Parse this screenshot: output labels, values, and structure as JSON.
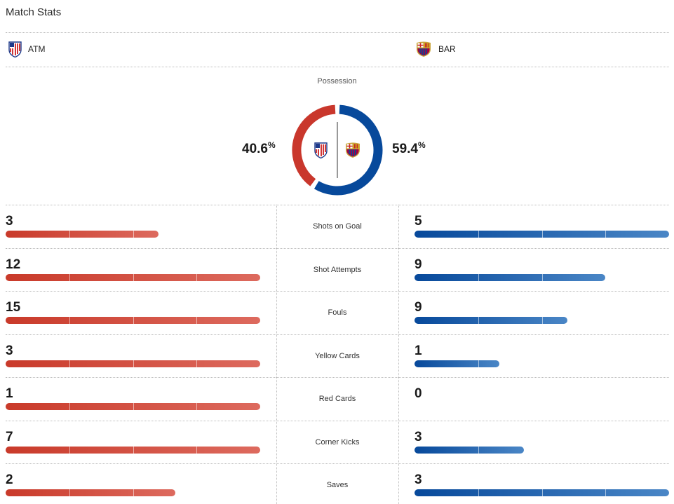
{
  "title": "Match Stats",
  "teams": {
    "home": {
      "abbr": "ATM",
      "logo": "atletico-crest-icon",
      "color": "#c9372c"
    },
    "away": {
      "abbr": "BAR",
      "logo": "barcelona-crest-icon",
      "color": "#07499b"
    }
  },
  "possession": {
    "label": "Possession",
    "home": {
      "value": "40.6",
      "unit": "%"
    },
    "away": {
      "value": "59.4",
      "unit": "%"
    }
  },
  "stats": [
    {
      "label": "Shots on Goal",
      "home": "3",
      "away": "5"
    },
    {
      "label": "Shot Attempts",
      "home": "12",
      "away": "9"
    },
    {
      "label": "Fouls",
      "home": "15",
      "away": "9"
    },
    {
      "label": "Yellow Cards",
      "home": "3",
      "away": "1"
    },
    {
      "label": "Red Cards",
      "home": "1",
      "away": "0"
    },
    {
      "label": "Corner Kicks",
      "home": "7",
      "away": "3"
    },
    {
      "label": "Saves",
      "home": "2",
      "away": "3"
    }
  ]
}
